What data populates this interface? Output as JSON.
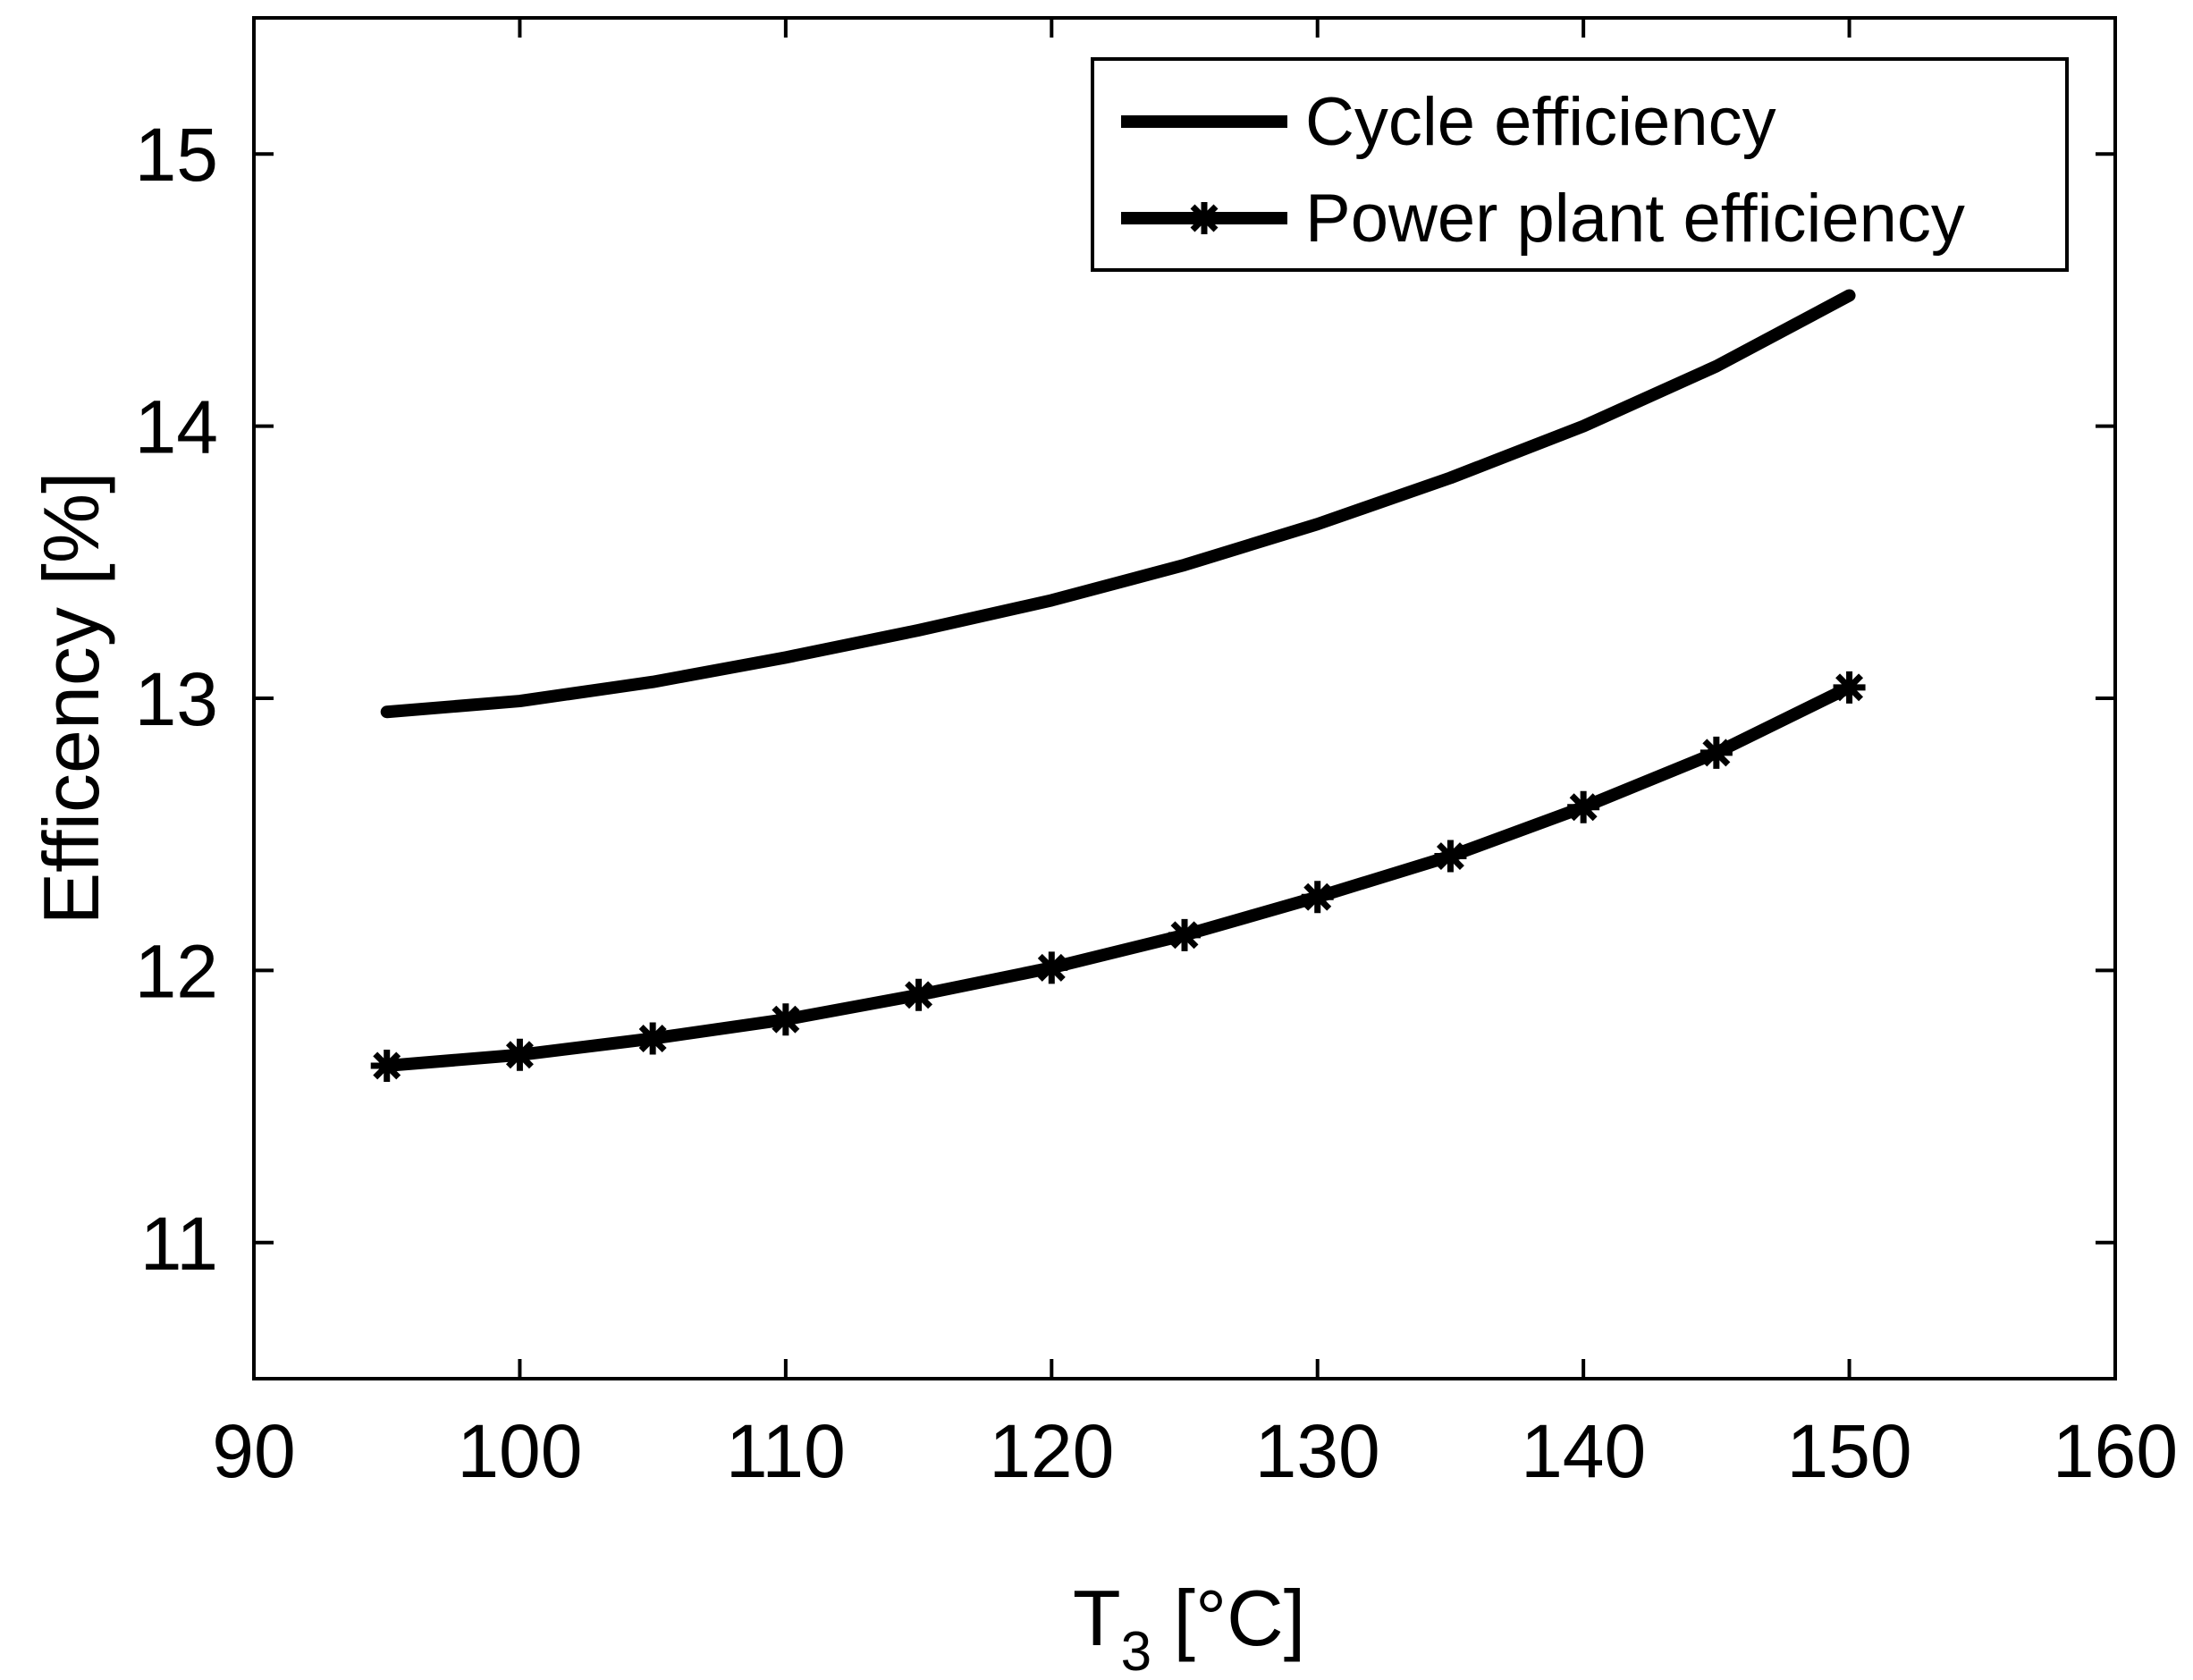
{
  "chart_data": {
    "type": "line",
    "title": "",
    "xlabel_main": "T",
    "xlabel_sub": "3",
    "xlabel_unit": " [°C]",
    "ylabel": "Efficency [%]",
    "xlim": [
      90,
      160
    ],
    "ylim": [
      10.5,
      15.5
    ],
    "xticks": [
      90,
      100,
      110,
      120,
      130,
      140,
      150,
      160
    ],
    "yticks": [
      11,
      12,
      13,
      14,
      15
    ],
    "grid": false,
    "legend_position": "top-right",
    "series": [
      {
        "name": "Cycle efficiency",
        "marker": "none",
        "color": "#000000",
        "x": [
          95,
          100,
          105,
          110,
          115,
          120,
          125,
          130,
          135,
          140,
          145,
          150
        ],
        "y": [
          12.95,
          12.99,
          13.06,
          13.15,
          13.25,
          13.36,
          13.49,
          13.64,
          13.81,
          14.0,
          14.22,
          14.48
        ]
      },
      {
        "name": "Power plant efficiency",
        "marker": "star",
        "color": "#000000",
        "x": [
          95,
          100,
          105,
          110,
          115,
          120,
          125,
          130,
          135,
          140,
          145,
          150
        ],
        "y": [
          11.65,
          11.69,
          11.75,
          11.82,
          11.91,
          12.01,
          12.13,
          12.27,
          12.42,
          12.6,
          12.8,
          13.04
        ]
      }
    ]
  }
}
